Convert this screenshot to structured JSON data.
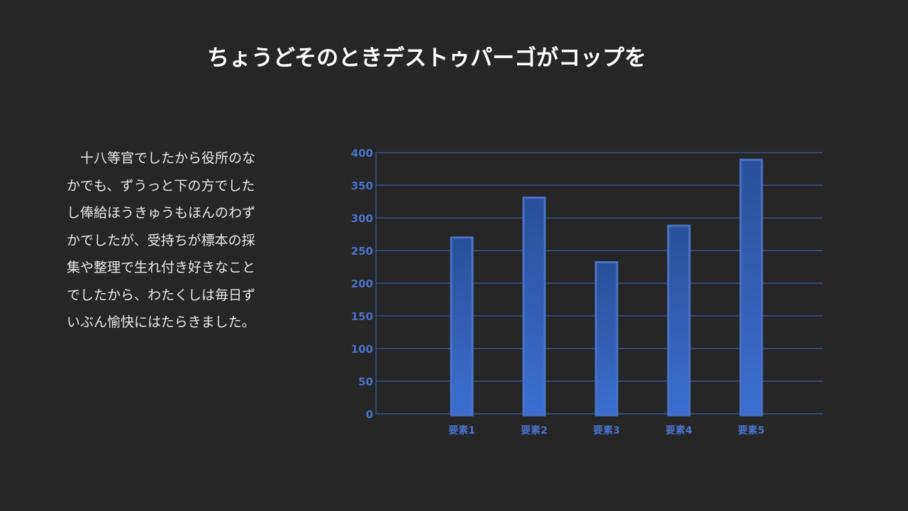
{
  "slide": {
    "title": "ちょうどそのときデストゥパーゴがコップを",
    "body": "十八等官でしたから役所のなかでも、ずうっと下の方でしたし俸給ほうきゅうもほんのわずかでしたが、受持ちが標本の採集や整理で生れ付き好きなことでしたから、わたくしは毎日ずいぶん愉快にはたらきました。"
  },
  "chart_data": {
    "type": "bar",
    "categories": [
      "要素1",
      "要素2",
      "要素3",
      "要素4",
      "要素5"
    ],
    "values": [
      270,
      331,
      232,
      288,
      389
    ],
    "ylim": [
      0,
      400
    ],
    "yticks": [
      0,
      50,
      100,
      150,
      200,
      250,
      300,
      350,
      400
    ],
    "grid": true,
    "legend": "none",
    "colors": {
      "bar_fill_top": "#2a4f9a",
      "bar_fill_bottom": "#3a6fd0",
      "bar_stroke": "#4a72c8",
      "grid": "#3e68c0",
      "tick_label": "#4a72c8"
    }
  }
}
